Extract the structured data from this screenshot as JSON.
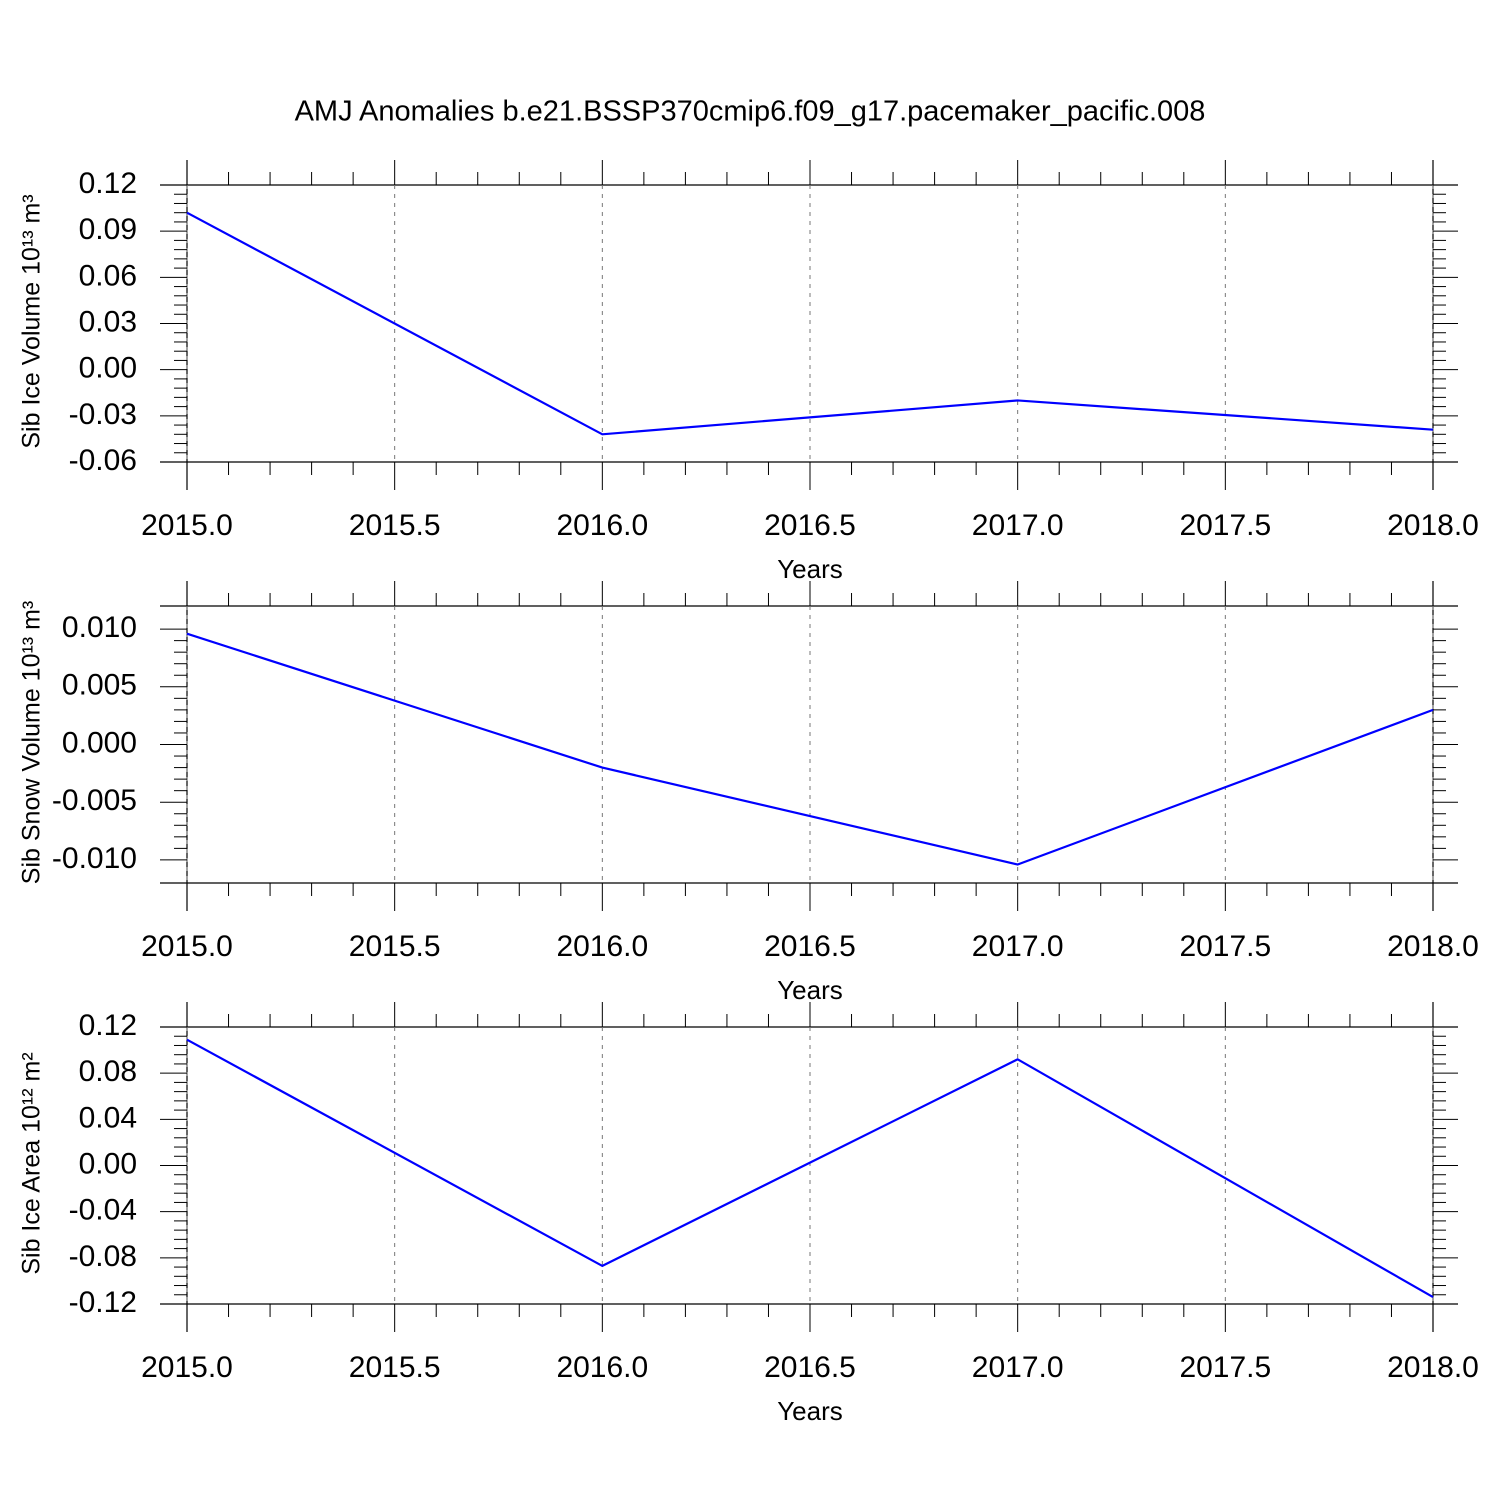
{
  "chart_data": [
    {
      "type": "line",
      "title": "AMJ Anomalies b.e21.BSSP370cmip6.f09_g17.pacemaker_pacific.008",
      "xlabel": "Years",
      "ylabel": "Sib Ice Volume 10¹³ m³",
      "x": [
        2015,
        2016,
        2017,
        2018
      ],
      "values": [
        0.102,
        -0.042,
        -0.02,
        -0.039
      ],
      "color": "#0000ff",
      "xlim": [
        2015,
        2018
      ],
      "ylim": [
        -0.06,
        0.12
      ],
      "xticks": [
        {
          "value": 2015,
          "label": "2015.0"
        },
        2015.5,
        {
          "value": 2016,
          "label": "2016.0"
        },
        2016.5,
        {
          "value": 2017,
          "label": "2017.0"
        },
        2017.5,
        {
          "value": 2018,
          "label": "2018.0"
        }
      ],
      "yticks": [
        -0.06,
        -0.03,
        {
          "value": 0,
          "label": "0.00"
        },
        0.03,
        0.06,
        0.09,
        0.12
      ],
      "grid": true
    },
    {
      "type": "line",
      "xlabel": "Years",
      "ylabel": "Sib Snow Volume 10¹³ m³",
      "x": [
        2015,
        2016,
        2017,
        2018
      ],
      "values": [
        0.0096,
        -0.002,
        -0.0104,
        0.003
      ],
      "color": "#0000ff",
      "xlim": [
        2015,
        2018
      ],
      "ylim": [
        -0.012,
        0.012
      ],
      "xticks": [
        {
          "value": 2015,
          "label": "2015.0"
        },
        2015.5,
        {
          "value": 2016,
          "label": "2016.0"
        },
        2016.5,
        {
          "value": 2017,
          "label": "2017.0"
        },
        2017.5,
        {
          "value": 2018,
          "label": "2018.0"
        }
      ],
      "yticks": [
        {
          "value": -0.01,
          "label": "-0.010"
        },
        -0.005,
        {
          "value": 0,
          "label": "0.000"
        },
        0.005,
        {
          "value": 0.01,
          "label": "0.010"
        }
      ],
      "grid": true
    },
    {
      "type": "line",
      "xlabel": "Years",
      "ylabel": "Sib Ice Area 10¹² m²",
      "x": [
        2015,
        2016,
        2017,
        2018
      ],
      "values": [
        0.109,
        -0.087,
        0.092,
        -0.114
      ],
      "color": "#0000ff",
      "xlim": [
        2015,
        2018
      ],
      "ylim": [
        -0.12,
        0.12
      ],
      "xticks": [
        {
          "value": 2015,
          "label": "2015.0"
        },
        2015.5,
        {
          "value": 2016,
          "label": "2016.0"
        },
        2016.5,
        {
          "value": 2017,
          "label": "2017.0"
        },
        2017.5,
        {
          "value": 2018,
          "label": "2018.0"
        }
      ],
      "yticks": [
        -0.12,
        -0.08,
        -0.04,
        {
          "value": 0,
          "label": "0.00"
        },
        0.04,
        0.08,
        0.12
      ],
      "grid": true
    }
  ]
}
